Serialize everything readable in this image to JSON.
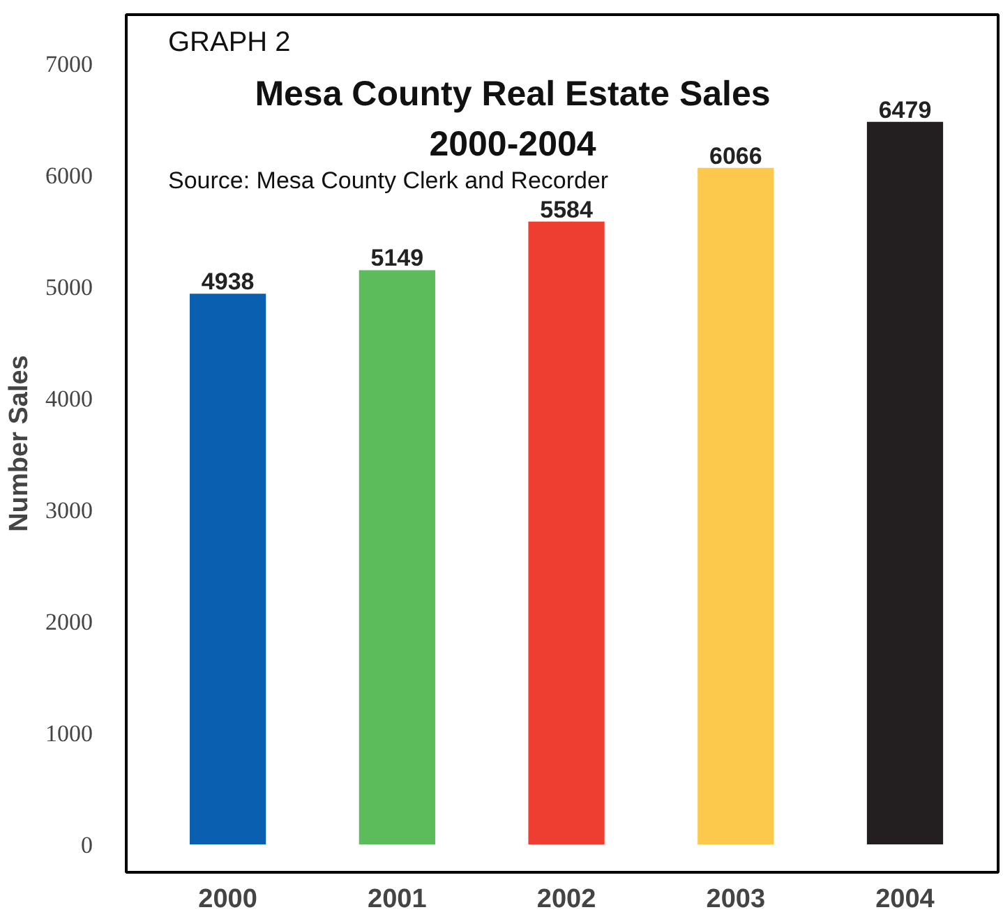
{
  "chart_data": {
    "type": "bar",
    "title": "Mesa County Real Estate Sales",
    "subtitle": "2000-2004",
    "ylabel": "Number Sales",
    "annotations": [
      "GRAPH 2",
      "Source: Mesa County Clerk and Recorder"
    ],
    "categories": [
      "2000",
      "2001",
      "2002",
      "2003",
      "2004"
    ],
    "values": [
      4938,
      5149,
      5584,
      6066,
      6479
    ],
    "colors": [
      "#0a5fb0",
      "#5cbb5a",
      "#ee3e32",
      "#fdc94d",
      "#231f20"
    ],
    "data_labels": true,
    "ylim": [
      -250,
      7440
    ],
    "yticks": [
      0,
      1000,
      2000,
      3000,
      4000,
      5000,
      6000,
      7000
    ]
  }
}
